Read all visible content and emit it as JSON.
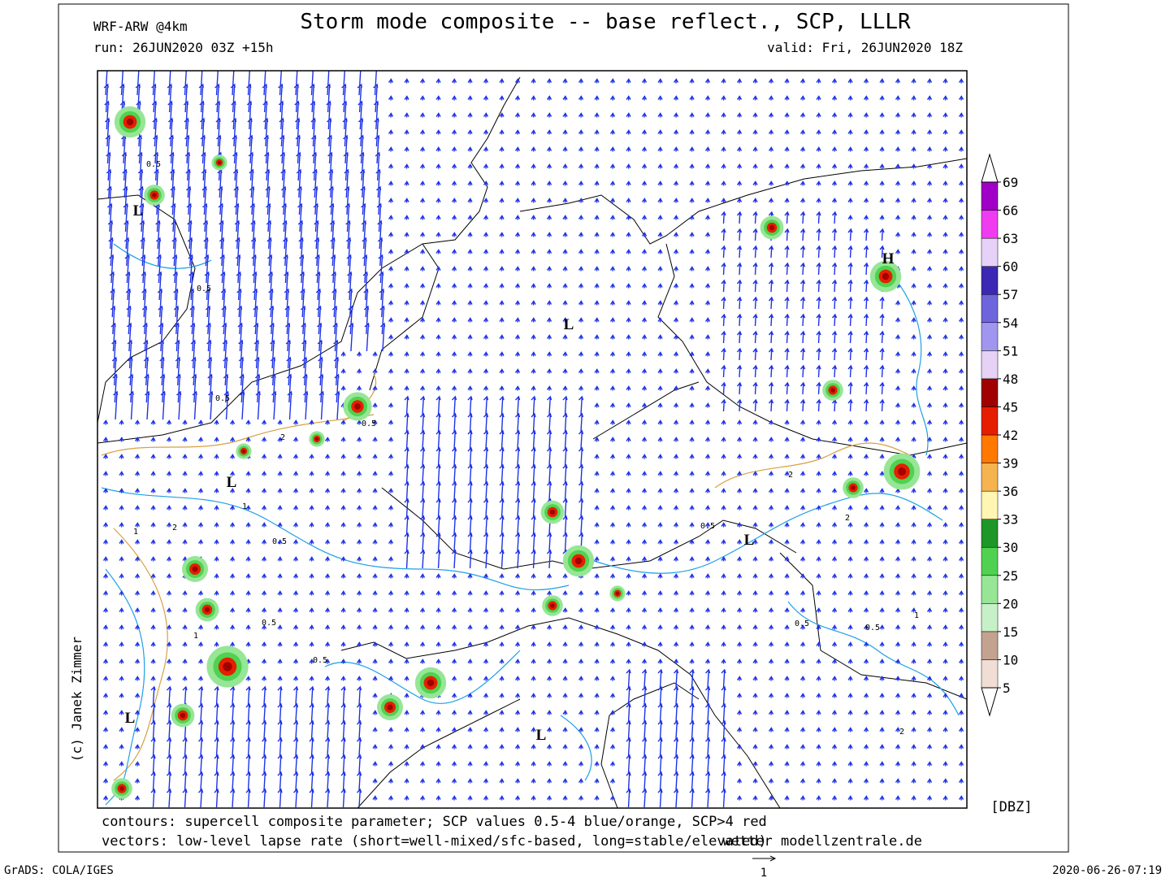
{
  "header": {
    "model": "WRF-ARW @4km",
    "title": "Storm mode composite -- base reflect., SCP, LLLR",
    "run": "run: 26JUN2020 03Z +15h",
    "valid": "valid: Fri, 26JUN2020 18Z"
  },
  "map": {
    "pressure_labels": [
      "L",
      "L",
      "L",
      "H",
      "L",
      "L",
      "L"
    ],
    "contour_labels": [
      "0.5",
      "0.5",
      "0.5",
      "0.5",
      "0.5",
      "0.5",
      "0.5",
      "1",
      "1",
      "1",
      "2",
      "2",
      "2",
      "2",
      "0.5",
      "0.5",
      "0.5",
      "1",
      "2"
    ]
  },
  "colorbar": {
    "unit": "[DBZ]",
    "levels": [
      5,
      10,
      15,
      20,
      25,
      30,
      33,
      36,
      39,
      42,
      45,
      48,
      51,
      54,
      57,
      60,
      63,
      66,
      69
    ],
    "colors": [
      "#f0ddd3",
      "#c4a290",
      "#c8f0c8",
      "#96e696",
      "#50d250",
      "#1e9628",
      "#fff6b4",
      "#f5b450",
      "#ff7800",
      "#e61e00",
      "#a00000",
      "#e6d2f5",
      "#a096f0",
      "#6e64dc",
      "#3c28b4",
      "#e6d2f8",
      "#f03cf0",
      "#a000c8"
    ]
  },
  "footer": {
    "contours": "contours: supercell composite parameter; SCP values 0.5-4 blue/orange, SCP>4 red",
    "vectors": "vectors: low-level lapse rate (short=well-mixed/sfc-based, long=stable/elevated)",
    "watermark": "wetter modellzentrale.de",
    "credit": "(c) Janek Zimmer",
    "grads": "GrADS: COLA/IGES",
    "timestamp": "2020-06-26-07:19",
    "vector_scale": "1"
  }
}
